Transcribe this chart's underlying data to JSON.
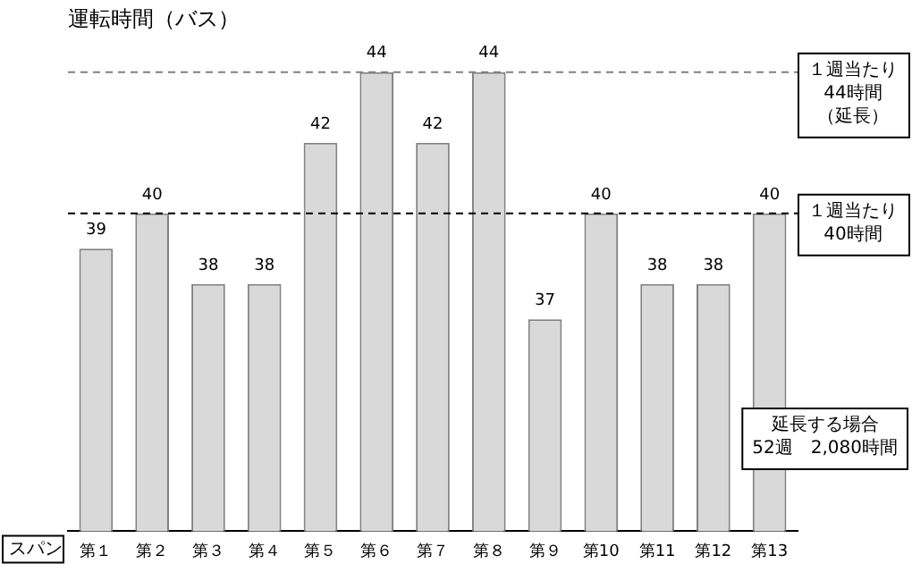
{
  "chart_data": {
    "type": "bar",
    "title": "運転時間（バス）",
    "xlabel": "スパン",
    "categories": [
      "第１",
      "第２",
      "第３",
      "第４",
      "第５",
      "第６",
      "第７",
      "第８",
      "第９",
      "第10",
      "第11",
      "第12",
      "第13"
    ],
    "values": [
      39,
      40,
      38,
      38,
      42,
      44,
      42,
      44,
      37,
      40,
      38,
      38,
      40
    ],
    "color": "#d9d9d9",
    "ylim": [
      31,
      44
    ],
    "data_labels": true,
    "grid": false,
    "legend": false,
    "ref_lines": [
      {
        "axis": "y",
        "value": 44,
        "label": "１週当たり44時間（延長）",
        "line_style": "dashed",
        "color": "#808080"
      },
      {
        "axis": "y",
        "value": 40,
        "label": "１週当たり40時間",
        "line_style": "dashed",
        "color": "#000000"
      }
    ],
    "annotations": [
      "延長する場合\n52週　2,080時間"
    ]
  }
}
